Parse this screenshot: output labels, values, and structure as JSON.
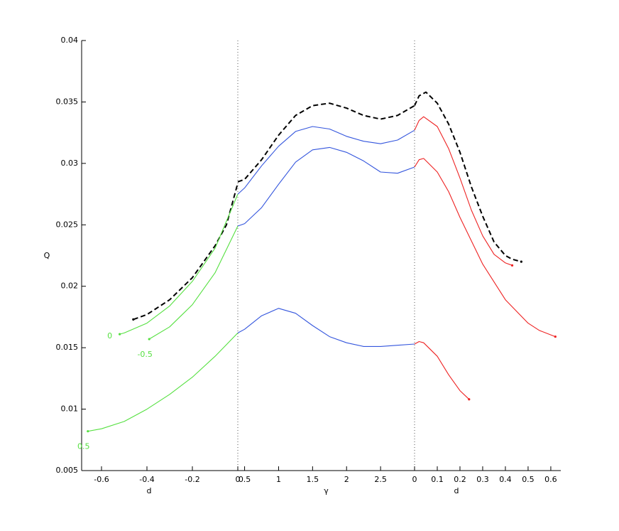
{
  "chart_data": {
    "type": "line",
    "ylabel": "Q",
    "ylim": [
      0.005,
      0.04
    ],
    "yticks": [
      0.005,
      0.01,
      0.015,
      0.02,
      0.025,
      0.03,
      0.035,
      0.04
    ],
    "panels": [
      {
        "xlabel": "d",
        "xlim": [
          -0.6875,
          0
        ],
        "xticks": [
          -0.6,
          -0.4,
          -0.2,
          0
        ]
      },
      {
        "xlabel": "γ",
        "xlim": [
          0.4,
          3
        ],
        "xticks": [
          0.5,
          1,
          1.5,
          2,
          2.5
        ]
      },
      {
        "xlabel": "d",
        "xlim": [
          0,
          0.644
        ],
        "xticks": [
          0,
          0.1,
          0.2,
          0.3,
          0.4,
          0.5,
          0.6
        ]
      }
    ],
    "series": [
      {
        "panel": 0,
        "color": "#000000",
        "dashed": true,
        "x": [
          -0.46,
          -0.4,
          -0.3,
          -0.2,
          -0.1,
          -0.05,
          0
        ],
        "values": [
          0.0173,
          0.0177,
          0.0189,
          0.0207,
          0.0233,
          0.025,
          0.0284
        ]
      },
      {
        "panel": 1,
        "color": "#000000",
        "dashed": true,
        "x": [
          0.4,
          0.5,
          0.75,
          1,
          1.25,
          1.5,
          1.75,
          2,
          2.25,
          2.5,
          2.75,
          3
        ],
        "values": [
          0.0285,
          0.0287,
          0.0303,
          0.0323,
          0.0339,
          0.0347,
          0.0349,
          0.0345,
          0.0339,
          0.0336,
          0.0339,
          0.0347
        ]
      },
      {
        "panel": 2,
        "color": "#000000",
        "dashed": true,
        "x": [
          0,
          0.02,
          0.05,
          0.1,
          0.15,
          0.2,
          0.25,
          0.3,
          0.35,
          0.4,
          0.43,
          0.47
        ],
        "values": [
          0.0347,
          0.0355,
          0.0358,
          0.0349,
          0.0332,
          0.0309,
          0.0281,
          0.0257,
          0.0236,
          0.0225,
          0.0222,
          0.022
        ]
      },
      {
        "panel": 0,
        "color": "#55e040",
        "label": "0",
        "x": [
          -0.52,
          -0.5,
          -0.4,
          -0.3,
          -0.2,
          -0.1,
          0
        ],
        "values": [
          0.0161,
          0.0162,
          0.017,
          0.0184,
          0.0204,
          0.0231,
          0.0275
        ]
      },
      {
        "panel": 0,
        "color": "#55e040",
        "label": "-0.5",
        "x": [
          -0.39,
          -0.3,
          -0.2,
          -0.1,
          0
        ],
        "values": [
          0.0157,
          0.0167,
          0.0185,
          0.0211,
          0.0249
        ]
      },
      {
        "panel": 0,
        "color": "#55e040",
        "label": "0.5",
        "x": [
          -0.66,
          -0.6,
          -0.5,
          -0.4,
          -0.3,
          -0.2,
          -0.1,
          0
        ],
        "values": [
          0.0082,
          0.0084,
          0.009,
          0.01,
          0.0112,
          0.0126,
          0.0143,
          0.0162
        ]
      },
      {
        "panel": 1,
        "color": "#3355dd",
        "x": [
          0.4,
          0.5,
          0.75,
          1,
          1.25,
          1.5,
          1.75,
          2,
          2.25,
          2.5,
          2.75,
          3
        ],
        "values": [
          0.0275,
          0.028,
          0.0298,
          0.0314,
          0.0326,
          0.033,
          0.0328,
          0.0322,
          0.0318,
          0.0316,
          0.0319,
          0.0327
        ]
      },
      {
        "panel": 1,
        "color": "#3355dd",
        "x": [
          0.4,
          0.5,
          0.75,
          1,
          1.25,
          1.5,
          1.75,
          2,
          2.25,
          2.5,
          2.75,
          3
        ],
        "values": [
          0.0249,
          0.0251,
          0.0264,
          0.0283,
          0.0301,
          0.0311,
          0.0313,
          0.0309,
          0.0302,
          0.0293,
          0.0292,
          0.0297
        ]
      },
      {
        "panel": 1,
        "color": "#3355dd",
        "x": [
          0.4,
          0.5,
          0.75,
          1,
          1.25,
          1.5,
          1.75,
          2,
          2.25,
          2.5,
          2.75,
          3
        ],
        "values": [
          0.0162,
          0.0165,
          0.0176,
          0.0182,
          0.0178,
          0.0168,
          0.0159,
          0.0154,
          0.0151,
          0.0151,
          0.0152,
          0.0153
        ]
      },
      {
        "panel": 2,
        "color": "#ee2222",
        "x": [
          0,
          0.02,
          0.04,
          0.1,
          0.15,
          0.2,
          0.25,
          0.3,
          0.35,
          0.4,
          0.43
        ],
        "values": [
          0.0327,
          0.0335,
          0.0338,
          0.033,
          0.0312,
          0.0288,
          0.0262,
          0.0241,
          0.0226,
          0.0219,
          0.0217
        ]
      },
      {
        "panel": 2,
        "color": "#ee2222",
        "x": [
          0,
          0.02,
          0.04,
          0.1,
          0.15,
          0.2,
          0.3,
          0.4,
          0.5,
          0.55,
          0.62
        ],
        "values": [
          0.0297,
          0.0303,
          0.0304,
          0.0293,
          0.0277,
          0.0256,
          0.0218,
          0.0189,
          0.017,
          0.0164,
          0.0159
        ]
      },
      {
        "panel": 2,
        "color": "#ee2222",
        "x": [
          0,
          0.02,
          0.04,
          0.1,
          0.15,
          0.2,
          0.24
        ],
        "values": [
          0.0153,
          0.0155,
          0.0154,
          0.0143,
          0.0128,
          0.0115,
          0.0108
        ]
      }
    ]
  }
}
